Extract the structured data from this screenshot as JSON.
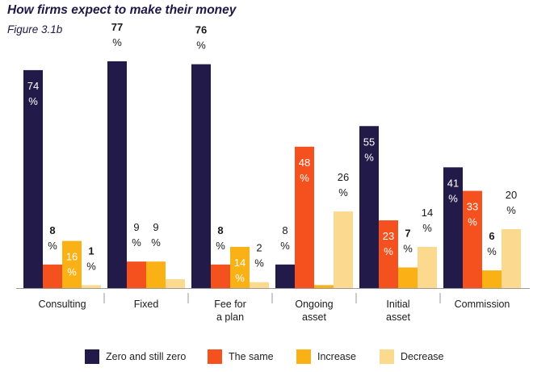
{
  "title": "How firms expect to make their money",
  "subtitle": "Figure 3.1b",
  "chart_data": {
    "type": "bar",
    "categories": [
      [
        "Consulting"
      ],
      [
        "Fixed"
      ],
      [
        "Fee for",
        "a plan"
      ],
      [
        "Ongoing",
        "asset"
      ],
      [
        "Initial",
        "asset"
      ],
      [
        "Commission"
      ]
    ],
    "series": [
      {
        "name": "Zero and still zero",
        "color": "#221a48",
        "values": [
          74,
          77,
          76,
          8,
          55,
          41
        ]
      },
      {
        "name": "The same",
        "color": "#f4511e",
        "values": [
          8,
          9,
          8,
          48,
          23,
          33
        ]
      },
      {
        "name": "Increase",
        "color": "#f9b115",
        "values": [
          16,
          9,
          14,
          1,
          7,
          6
        ]
      },
      {
        "name": "Decrease",
        "color": "#fbd98f",
        "values": [
          1,
          3,
          2,
          26,
          14,
          20
        ]
      }
    ],
    "label_styles": {
      "bold": [
        [
          1,
          0
        ],
        [
          2,
          0
        ],
        [
          0,
          1
        ],
        [
          2,
          1
        ],
        [
          0,
          3
        ],
        [
          4,
          2
        ],
        [
          5,
          2
        ]
      ],
      "white_inside": [
        [
          0,
          0
        ],
        [
          4,
          0
        ],
        [
          5,
          0
        ],
        [
          1,
          3
        ],
        [
          3,
          1
        ],
        [
          4,
          1
        ],
        [
          5,
          1
        ],
        [
          0,
          2
        ],
        [
          2,
          2
        ],
        [
          3,
          2
        ]
      ]
    },
    "ylim": [
      0,
      80
    ],
    "legend_position": "bottom",
    "grid": false
  }
}
